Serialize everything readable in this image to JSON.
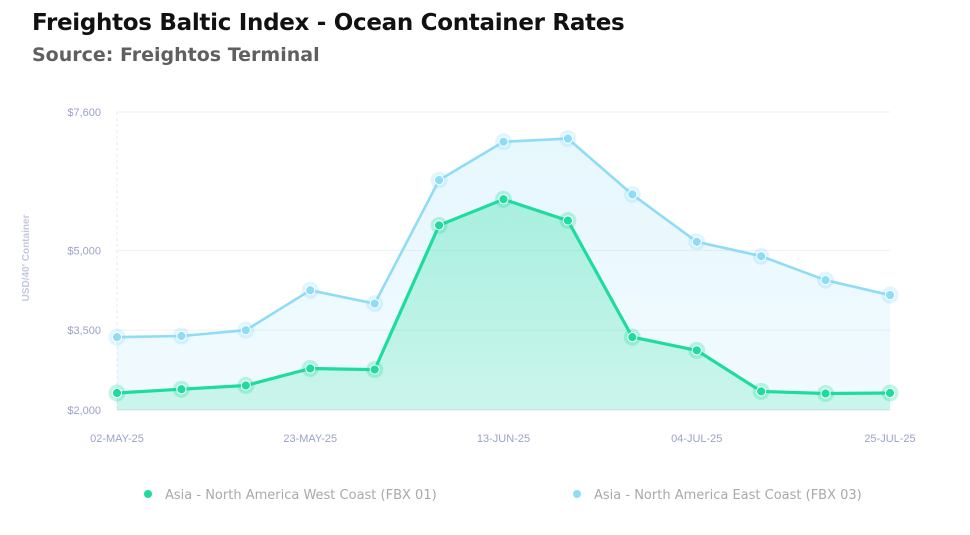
{
  "header": {
    "title": "Freightos Baltic Index - Ocean Container Rates",
    "subtitle": "Source: Freightos Terminal"
  },
  "chart_data": {
    "type": "line",
    "title": "Freightos Baltic Index - Ocean Container Rates",
    "subtitle": "Source: Freightos Terminal",
    "ylabel": "USD/40' Container",
    "xlabel": "",
    "ylim": [
      2000,
      7600
    ],
    "yticks": [
      2000,
      3500,
      5000,
      7600
    ],
    "ytick_labels": [
      "$2,000",
      "$3,500",
      "$5,000",
      "$7,600"
    ],
    "x": [
      "02-MAY-25",
      "09-MAY-25",
      "16-MAY-25",
      "23-MAY-25",
      "30-MAY-25",
      "06-JUN-25",
      "13-JUN-25",
      "20-JUN-25",
      "27-JUN-25",
      "04-JUL-25",
      "11-JUL-25",
      "18-JUL-25",
      "25-JUL-25"
    ],
    "xtick_labels": [
      "02-MAY-25",
      "23-MAY-25",
      "13-JUN-25",
      "04-JUL-25",
      "25-JUL-25"
    ],
    "grid": true,
    "legend_position": "bottom",
    "series": [
      {
        "name": "Asia - North America West Coast (FBX 01)",
        "color": "#1edc9e",
        "values": [
          2320,
          2390,
          2460,
          2780,
          2760,
          5470,
          5960,
          5560,
          3370,
          3120,
          2350,
          2310,
          2320
        ]
      },
      {
        "name": "Asia - North America East Coast (FBX 03)",
        "color": "#8fdcf7",
        "values": [
          3370,
          3390,
          3500,
          4250,
          4000,
          6320,
          7040,
          7100,
          6050,
          5160,
          4890,
          4440,
          4160
        ]
      }
    ]
  }
}
